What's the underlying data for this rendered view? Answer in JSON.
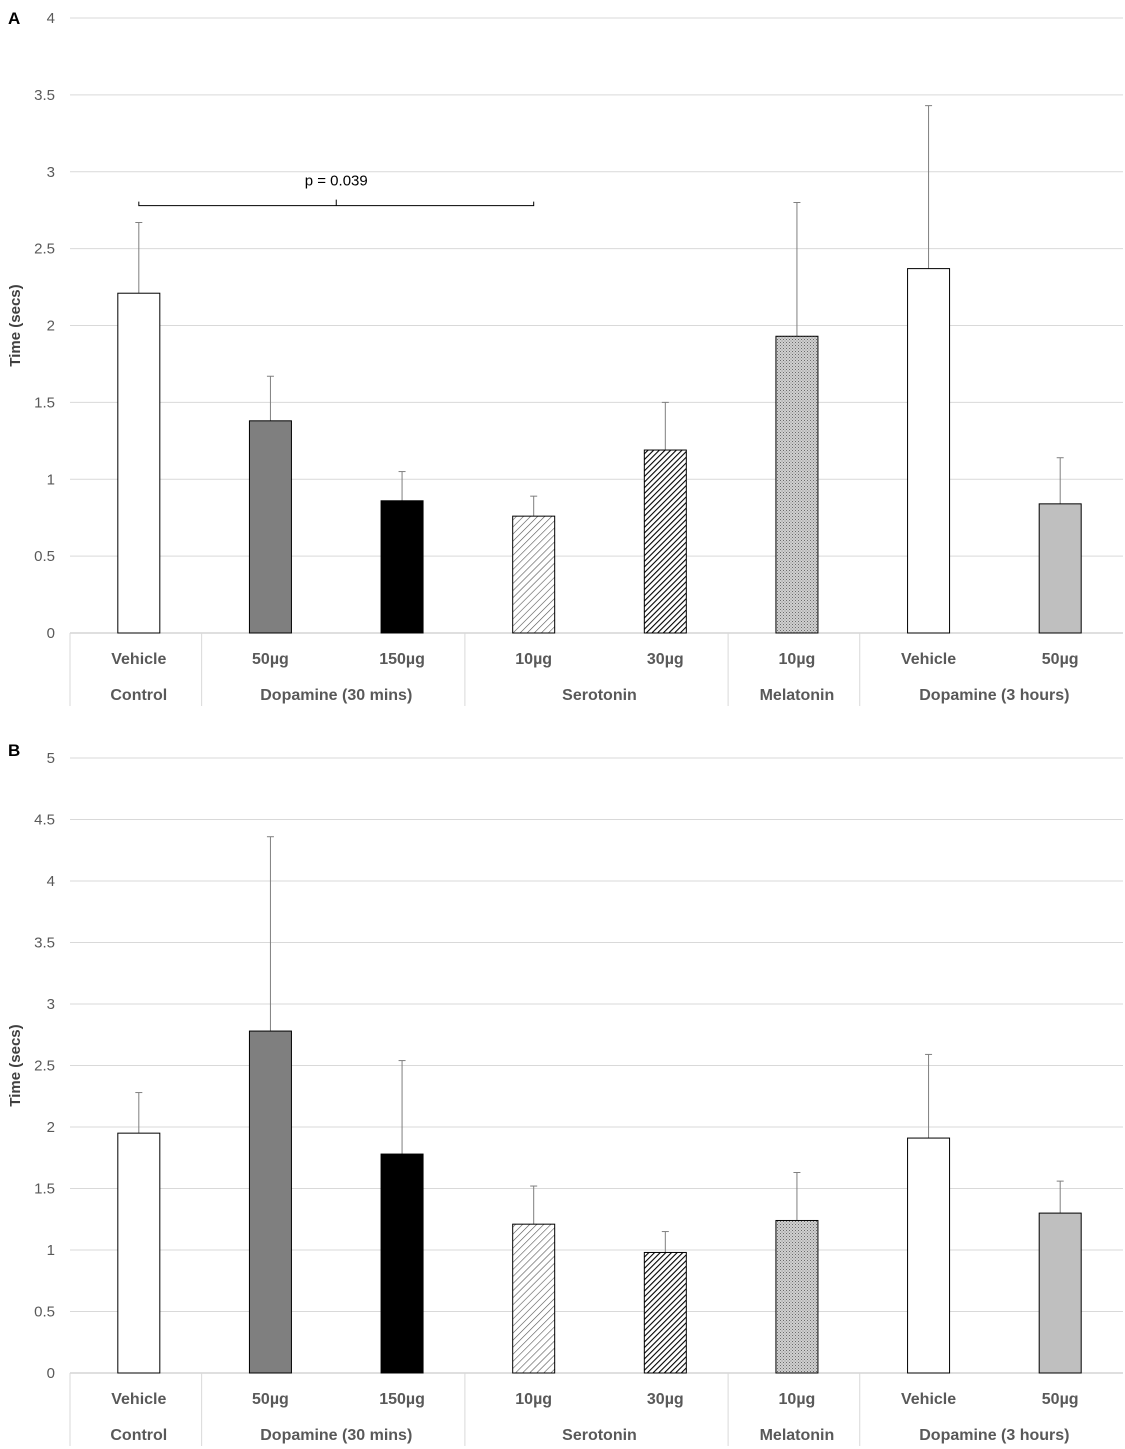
{
  "chart_data": [
    {
      "type": "bar",
      "panel_label": "A",
      "ylabel": "Time (secs)",
      "ylim": [
        0,
        4
      ],
      "yticks": [
        "0",
        "0.5",
        "1",
        "1.5",
        "2",
        "2.5",
        "3",
        "3.5",
        "4"
      ],
      "grid": true,
      "bars": [
        {
          "label": "Vehicle",
          "group": "Control",
          "value": 2.21,
          "error": 0.46,
          "pattern": "white"
        },
        {
          "label": "50µg",
          "group": "Dopamine (30 mins)",
          "value": 1.38,
          "error": 0.29,
          "pattern": "darkgray"
        },
        {
          "label": "150µg",
          "group": "Dopamine (30 mins)",
          "value": 0.86,
          "error": 0.19,
          "pattern": "black"
        },
        {
          "label": "10µg",
          "group": "Serotonin",
          "value": 0.76,
          "error": 0.13,
          "pattern": "light-hatch"
        },
        {
          "label": "30µg",
          "group": "Serotonin",
          "value": 1.19,
          "error": 0.31,
          "pattern": "dense-hatch"
        },
        {
          "label": "10µg",
          "group": "Melatonin",
          "value": 1.93,
          "error": 0.87,
          "pattern": "dots"
        },
        {
          "label": "Vehicle",
          "group": "Dopamine (3 hours)",
          "value": 2.37,
          "error": 1.06,
          "pattern": "white"
        },
        {
          "label": "50µg",
          "group": "Dopamine (3 hours)",
          "value": 0.84,
          "error": 0.3,
          "pattern": "lightgray"
        }
      ],
      "groups": [
        {
          "label": "Control",
          "span": 1
        },
        {
          "label": "Dopamine (30 mins)",
          "span": 2
        },
        {
          "label": "Serotonin",
          "span": 2
        },
        {
          "label": "Melatonin",
          "span": 1
        },
        {
          "label": "Dopamine (3 hours)",
          "span": 2
        }
      ],
      "annotation": {
        "text": "p = 0.039",
        "from_bar": 0,
        "to_bar": 3,
        "y": 2.78
      }
    },
    {
      "type": "bar",
      "panel_label": "B",
      "ylabel": "Time (secs)",
      "ylim": [
        0,
        5
      ],
      "yticks": [
        "0",
        "0.5",
        "1",
        "1.5",
        "2",
        "2.5",
        "3",
        "3.5",
        "4",
        "4.5",
        "5"
      ],
      "grid": true,
      "bars": [
        {
          "label": "Vehicle",
          "group": "Control",
          "value": 1.95,
          "error": 0.33,
          "pattern": "white"
        },
        {
          "label": "50µg",
          "group": "Dopamine (30 mins)",
          "value": 2.78,
          "error": 1.58,
          "pattern": "darkgray"
        },
        {
          "label": "150µg",
          "group": "Dopamine (30 mins)",
          "value": 1.78,
          "error": 0.76,
          "pattern": "black"
        },
        {
          "label": "10µg",
          "group": "Serotonin",
          "value": 1.21,
          "error": 0.31,
          "pattern": "light-hatch"
        },
        {
          "label": "30µg",
          "group": "Serotonin",
          "value": 0.98,
          "error": 0.17,
          "pattern": "dense-hatch"
        },
        {
          "label": "10µg",
          "group": "Melatonin",
          "value": 1.24,
          "error": 0.39,
          "pattern": "dots"
        },
        {
          "label": "Vehicle",
          "group": "Dopamine (3 hours)",
          "value": 1.91,
          "error": 0.68,
          "pattern": "white"
        },
        {
          "label": "50µg",
          "group": "Dopamine (3 hours)",
          "value": 1.3,
          "error": 0.26,
          "pattern": "lightgray"
        }
      ],
      "groups": [
        {
          "label": "Control",
          "span": 1
        },
        {
          "label": "Dopamine (30 mins)",
          "span": 2
        },
        {
          "label": "Serotonin",
          "span": 2
        },
        {
          "label": "Melatonin",
          "span": 1
        },
        {
          "label": "Dopamine (3 hours)",
          "span": 2
        }
      ]
    }
  ]
}
